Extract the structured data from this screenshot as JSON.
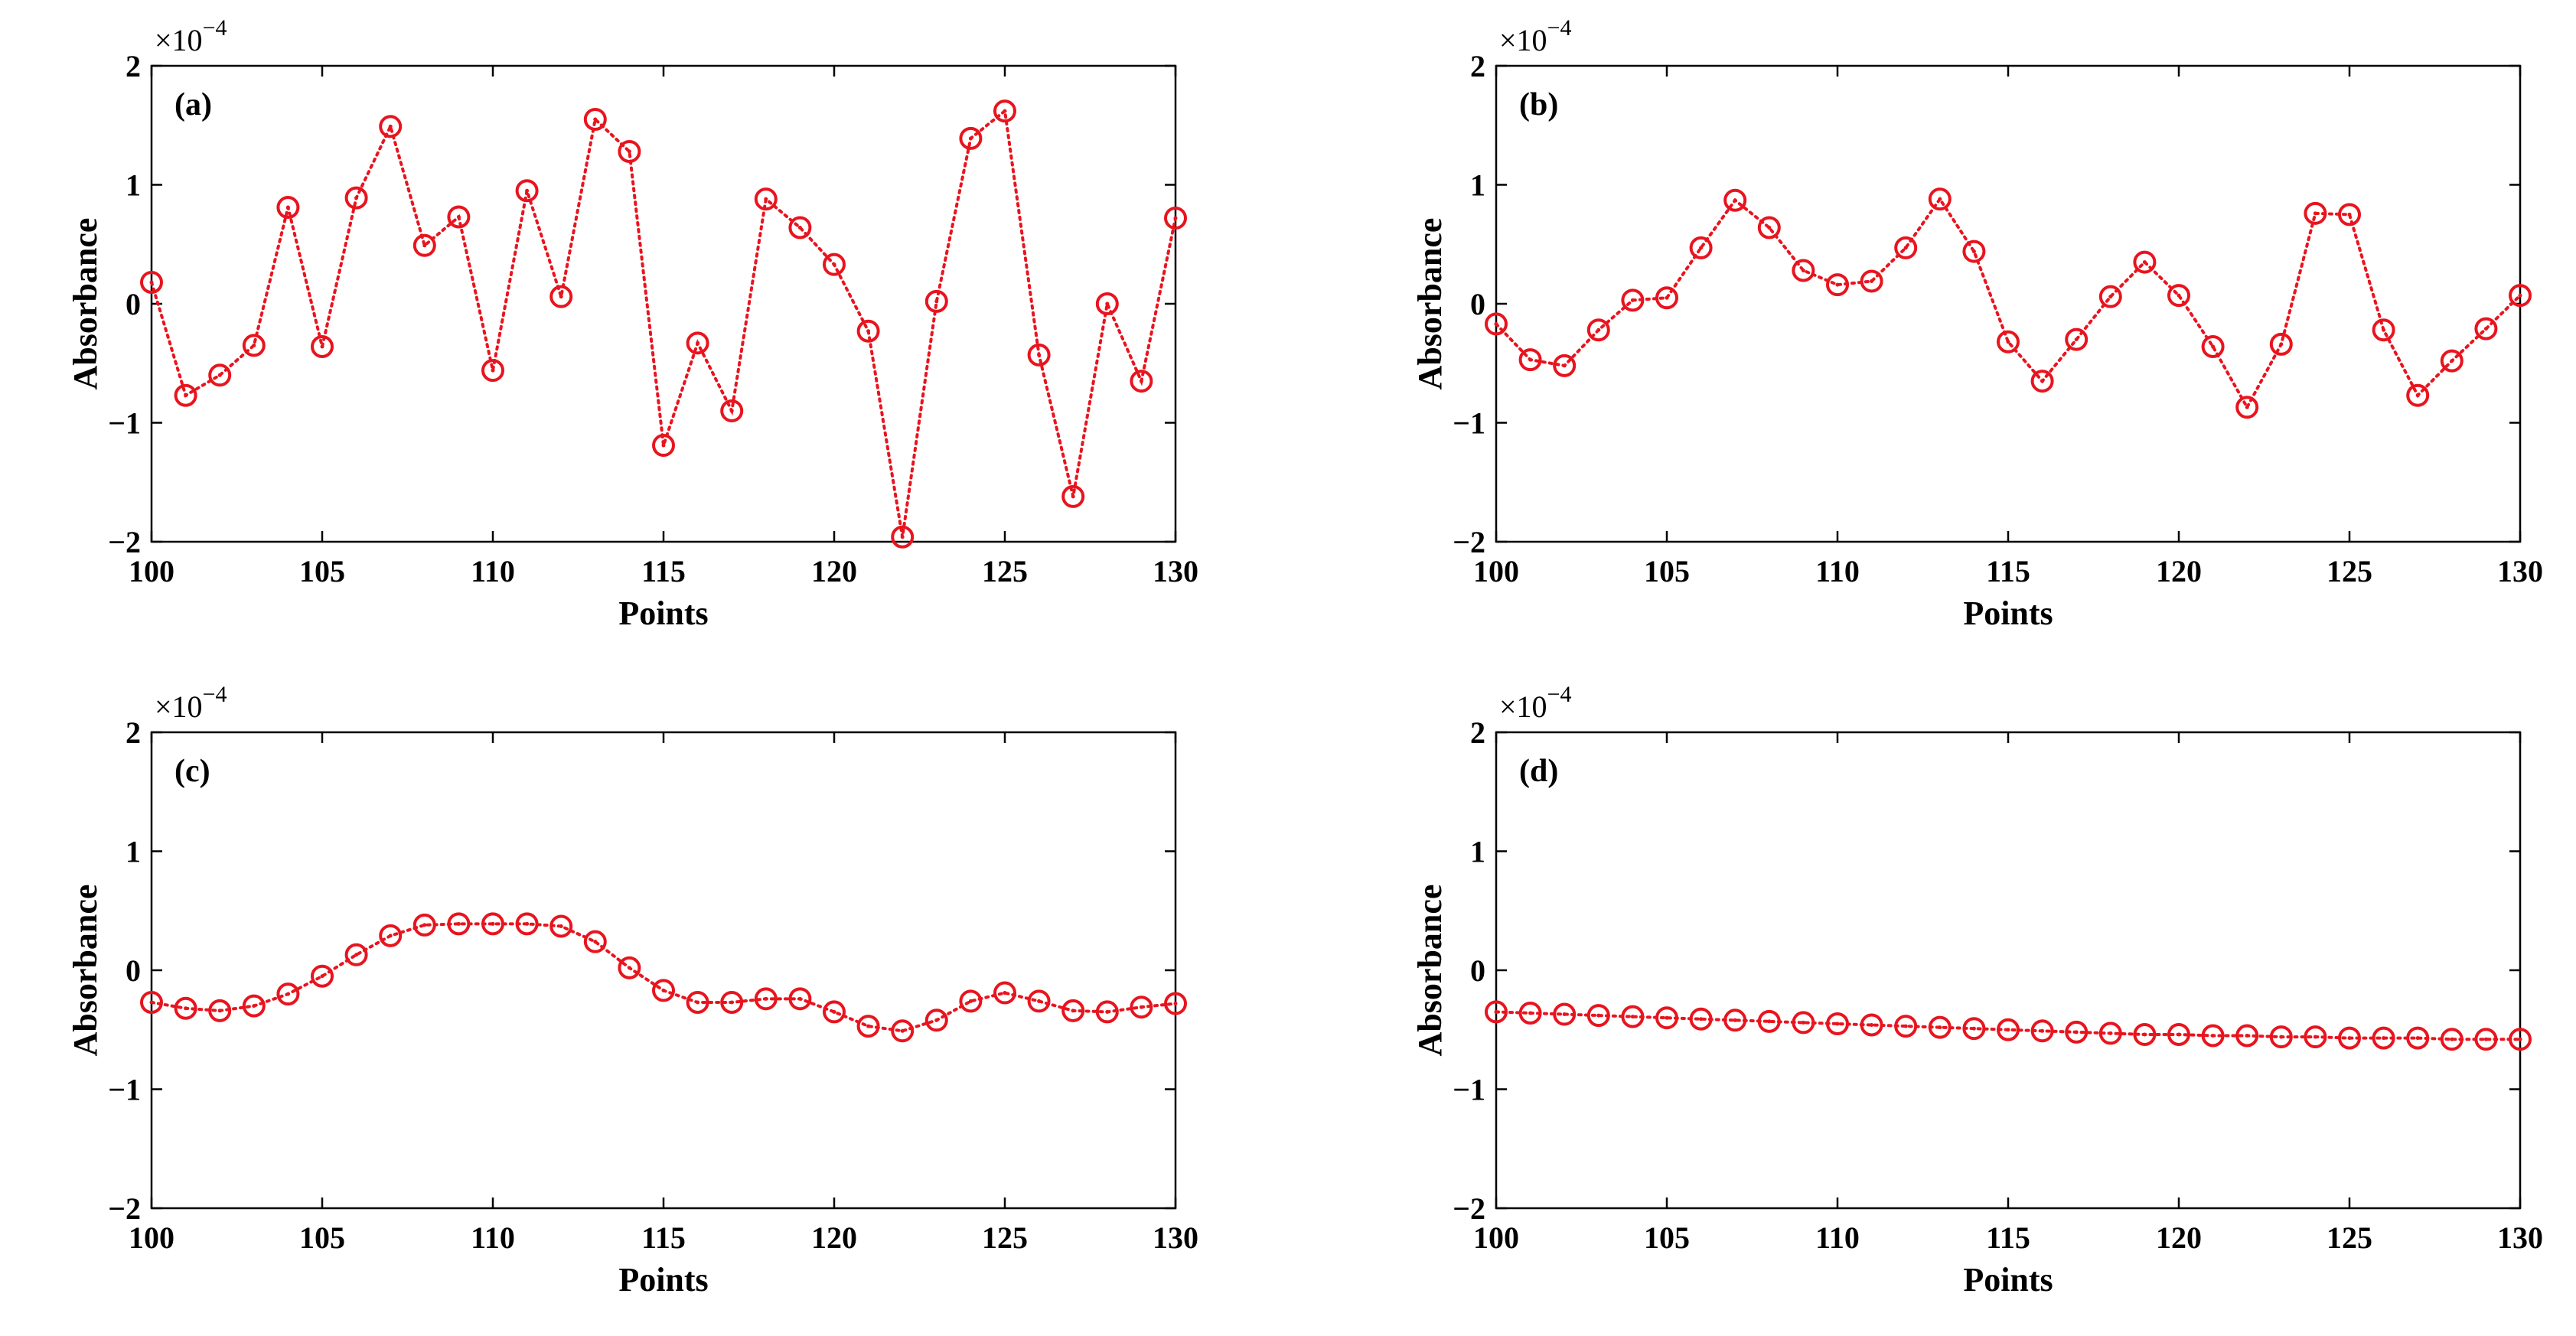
{
  "colors": {
    "series": "#e8141e",
    "axis": "#000000"
  },
  "chart_data": [
    {
      "type": "line",
      "panel_label": "(a)",
      "xlabel": "Points",
      "ylabel": "Absorbance",
      "exponent_base": "×10",
      "exponent_power": "−4",
      "xlim": [
        100,
        130
      ],
      "ylim": [
        -2,
        2
      ],
      "xticks": [
        100,
        105,
        110,
        115,
        120,
        125,
        130
      ],
      "yticks": [
        -2,
        -1,
        0,
        1,
        2
      ],
      "xtick_labels": [
        "100",
        "105",
        "110",
        "115",
        "120",
        "125",
        "130"
      ],
      "ytick_labels": [
        "−2",
        "−1",
        "0",
        "1",
        "2"
      ],
      "marker": "circle-with-dot",
      "line_style": "dotted",
      "x": [
        100,
        101,
        102,
        103,
        104,
        105,
        106,
        107,
        108,
        109,
        110,
        111,
        112,
        113,
        114,
        115,
        116,
        117,
        118,
        119,
        120,
        121,
        122,
        123,
        124,
        125,
        126,
        127,
        128,
        129,
        130
      ],
      "y": [
        0.18,
        -0.77,
        -0.6,
        -0.35,
        0.81,
        -0.36,
        0.89,
        1.49,
        0.49,
        0.73,
        -0.56,
        0.95,
        0.06,
        1.55,
        1.28,
        -1.19,
        -0.33,
        -0.9,
        0.88,
        0.64,
        0.33,
        -0.23,
        -1.96,
        0.02,
        1.39,
        1.62,
        -0.43,
        -1.62,
        0.0,
        -0.65,
        0.72
      ]
    },
    {
      "type": "line",
      "panel_label": "(b)",
      "xlabel": "Points",
      "ylabel": "Absorbance",
      "exponent_base": "×10",
      "exponent_power": "−4",
      "xlim": [
        100,
        130
      ],
      "ylim": [
        -2,
        2
      ],
      "xticks": [
        100,
        105,
        110,
        115,
        120,
        125,
        130
      ],
      "yticks": [
        -2,
        -1,
        0,
        1,
        2
      ],
      "xtick_labels": [
        "100",
        "105",
        "110",
        "115",
        "120",
        "125",
        "130"
      ],
      "ytick_labels": [
        "−2",
        "−1",
        "0",
        "1",
        "2"
      ],
      "marker": "circle-with-dot",
      "line_style": "dotted",
      "x": [
        100,
        101,
        102,
        103,
        104,
        105,
        106,
        107,
        108,
        109,
        110,
        111,
        112,
        113,
        114,
        115,
        116,
        117,
        118,
        119,
        120,
        121,
        122,
        123,
        124,
        125,
        126,
        127,
        128,
        129,
        130
      ],
      "y": [
        -0.17,
        -0.47,
        -0.52,
        -0.22,
        0.03,
        0.05,
        0.47,
        0.87,
        0.64,
        0.28,
        0.16,
        0.19,
        0.47,
        0.88,
        0.44,
        -0.32,
        -0.65,
        -0.3,
        0.06,
        0.35,
        0.07,
        -0.36,
        -0.87,
        -0.34,
        0.76,
        0.75,
        -0.22,
        -0.77,
        -0.48,
        -0.21,
        0.07
      ]
    },
    {
      "type": "line",
      "panel_label": "(c)",
      "xlabel": "Points",
      "ylabel": "Absorbance",
      "exponent_base": "×10",
      "exponent_power": "−4",
      "xlim": [
        100,
        130
      ],
      "ylim": [
        -2,
        2
      ],
      "xticks": [
        100,
        105,
        110,
        115,
        120,
        125,
        130
      ],
      "yticks": [
        -2,
        -1,
        0,
        1,
        2
      ],
      "xtick_labels": [
        "100",
        "105",
        "110",
        "115",
        "120",
        "125",
        "130"
      ],
      "ytick_labels": [
        "−2",
        "−1",
        "0",
        "1",
        "2"
      ],
      "marker": "circle-with-dot",
      "line_style": "dotted",
      "x": [
        100,
        101,
        102,
        103,
        104,
        105,
        106,
        107,
        108,
        109,
        110,
        111,
        112,
        113,
        114,
        115,
        116,
        117,
        118,
        119,
        120,
        121,
        122,
        123,
        124,
        125,
        126,
        127,
        128,
        129,
        130
      ],
      "y": [
        -0.27,
        -0.32,
        -0.34,
        -0.3,
        -0.2,
        -0.05,
        0.13,
        0.29,
        0.38,
        0.39,
        0.39,
        0.39,
        0.37,
        0.24,
        0.02,
        -0.17,
        -0.27,
        -0.27,
        -0.24,
        -0.24,
        -0.35,
        -0.47,
        -0.51,
        -0.42,
        -0.26,
        -0.19,
        -0.26,
        -0.34,
        -0.35,
        -0.31,
        -0.28
      ]
    },
    {
      "type": "line",
      "panel_label": "(d)",
      "xlabel": "Points",
      "ylabel": "Absorbance",
      "exponent_base": "×10",
      "exponent_power": "−4",
      "xlim": [
        100,
        130
      ],
      "ylim": [
        -2,
        2
      ],
      "xticks": [
        100,
        105,
        110,
        115,
        120,
        125,
        130
      ],
      "yticks": [
        -2,
        -1,
        0,
        1,
        2
      ],
      "xtick_labels": [
        "100",
        "105",
        "110",
        "115",
        "120",
        "125",
        "130"
      ],
      "ytick_labels": [
        "−2",
        "−1",
        "0",
        "1",
        "2"
      ],
      "marker": "circle-with-dot",
      "line_style": "dotted",
      "x": [
        100,
        101,
        102,
        103,
        104,
        105,
        106,
        107,
        108,
        109,
        110,
        111,
        112,
        113,
        114,
        115,
        116,
        117,
        118,
        119,
        120,
        121,
        122,
        123,
        124,
        125,
        126,
        127,
        128,
        129,
        130
      ],
      "y": [
        -0.35,
        -0.36,
        -0.37,
        -0.38,
        -0.39,
        -0.4,
        -0.41,
        -0.42,
        -0.43,
        -0.44,
        -0.45,
        -0.46,
        -0.47,
        -0.48,
        -0.49,
        -0.5,
        -0.51,
        -0.52,
        -0.53,
        -0.54,
        -0.54,
        -0.55,
        -0.55,
        -0.56,
        -0.56,
        -0.57,
        -0.57,
        -0.57,
        -0.58,
        -0.58,
        -0.58
      ]
    }
  ]
}
